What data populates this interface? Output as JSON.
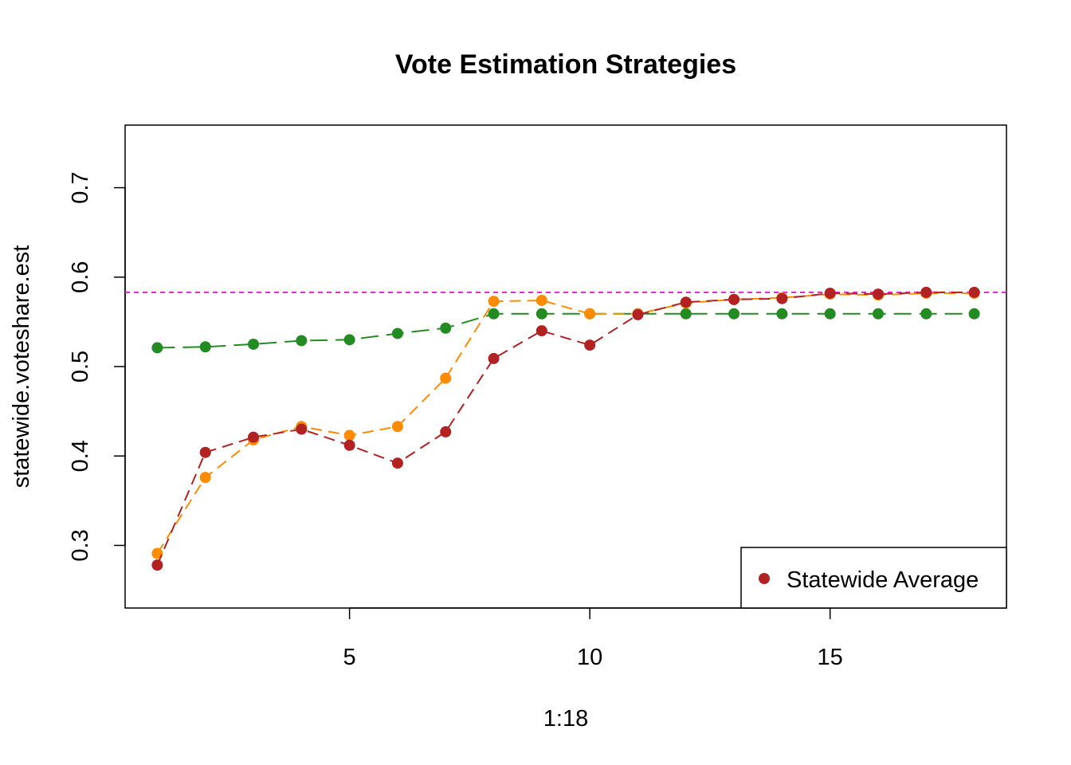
{
  "chart_data": {
    "type": "line",
    "title": "Vote Estimation Strategies",
    "xlabel": "1:18",
    "ylabel": "statewide.voteshare.est",
    "xlim": [
      0.33,
      18.67
    ],
    "ylim": [
      0.23,
      0.77
    ],
    "x_ticks": [
      5,
      10,
      15
    ],
    "y_ticks": [
      0.3,
      0.4,
      0.5,
      0.6,
      0.7
    ],
    "x_tick_labels": [
      "5",
      "10",
      "15"
    ],
    "y_tick_labels": [
      "0.3",
      "0.4",
      "0.5",
      "0.6",
      "0.7"
    ],
    "x": [
      1,
      2,
      3,
      4,
      5,
      6,
      7,
      8,
      9,
      10,
      11,
      12,
      13,
      14,
      15,
      16,
      17,
      18
    ],
    "series": [
      {
        "color": "#228b22",
        "line_style": "long-dash",
        "values": [
          0.521,
          0.522,
          0.525,
          0.529,
          0.53,
          0.537,
          0.543,
          0.559,
          0.559,
          0.559,
          0.559,
          0.559,
          0.559,
          0.559,
          0.559,
          0.559,
          0.559,
          0.559
        ]
      },
      {
        "color": "#ff8c00",
        "line_style": "dashed",
        "values": [
          0.291,
          0.376,
          0.418,
          0.433,
          0.423,
          0.433,
          0.487,
          0.573,
          0.574,
          0.559,
          0.559,
          0.571,
          0.575,
          0.577,
          0.581,
          0.58,
          0.582,
          0.582
        ]
      },
      {
        "color": "#b22222",
        "line_style": "dashed",
        "values": [
          0.278,
          0.404,
          0.421,
          0.43,
          0.412,
          0.392,
          0.427,
          0.509,
          0.54,
          0.524,
          0.558,
          0.572,
          0.575,
          0.576,
          0.582,
          0.581,
          0.583,
          0.583
        ]
      }
    ],
    "reference_line": {
      "y": 0.583,
      "color": "#e020d0",
      "line_style": "dotted"
    },
    "legend": {
      "position": "bottom-right",
      "entries": [
        {
          "label": "Statewide Average",
          "color": "#b22222",
          "marker": "filled-circle"
        }
      ]
    },
    "grid": false
  }
}
